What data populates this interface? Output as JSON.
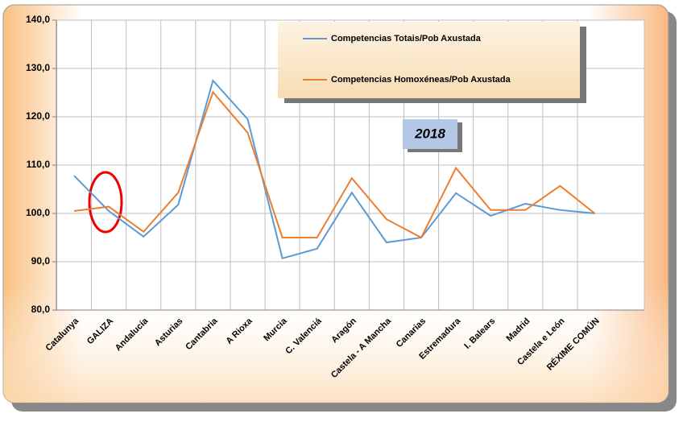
{
  "chart_data": {
    "type": "line",
    "categories": [
      "Catalunya",
      "GALIZA",
      "Andalucía",
      "Asturias",
      "Cantabria",
      "A Rioxa",
      "Murcia",
      "C. Valenciá",
      "Aragón",
      "Castela - A Mancha",
      "Canarias",
      "Estremadura",
      "I. Balears",
      "Madrid",
      "Castela e León",
      "RÉXIME COMÚN"
    ],
    "series": [
      {
        "name": "Competencias Totais/Pob Axustada",
        "color": "#5b9bd5",
        "values": [
          107.8,
          100.5,
          95.2,
          101.8,
          127.5,
          119.5,
          90.7,
          92.7,
          104.3,
          94.0,
          95.0,
          104.2,
          99.5,
          102.0,
          100.7,
          100.0
        ]
      },
      {
        "name": "Competencias Homoxéneas/Pob Axustada",
        "color": "#ed7d31",
        "values": [
          100.5,
          101.4,
          96.2,
          104.3,
          125.1,
          116.7,
          95.0,
          95.0,
          107.3,
          98.8,
          95.0,
          109.4,
          100.7,
          100.7,
          105.7,
          100.0
        ]
      }
    ],
    "annotation": "2018",
    "ylim": [
      80,
      140
    ],
    "yticks": [
      {
        "value": 80,
        "label": "80,0"
      },
      {
        "value": 90,
        "label": "90,0"
      },
      {
        "value": 100,
        "label": "100,0"
      },
      {
        "value": 110,
        "label": "110,0"
      },
      {
        "value": 120,
        "label": "120,0"
      },
      {
        "value": 130,
        "label": "130,0"
      },
      {
        "value": 140,
        "label": "140,0"
      }
    ],
    "grid": true
  }
}
